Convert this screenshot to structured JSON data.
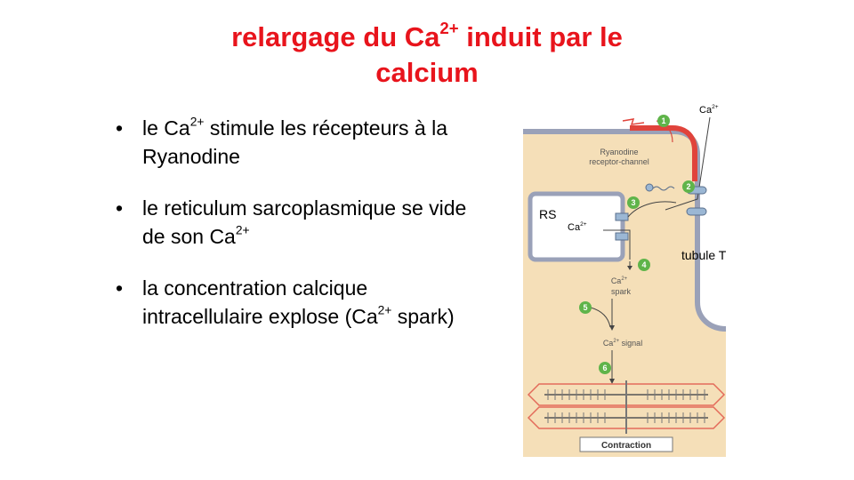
{
  "title": {
    "line1_a": "relargage du Ca",
    "line1_sup": "2+",
    "line1_b": " induit par le",
    "line2": "calcium"
  },
  "bullets": [
    {
      "a": "le Ca",
      "sup": "2+",
      "b": " stimule les récepteurs à la Ryanodine"
    },
    {
      "a": "le reticulum sarcoplasmique se vide de son Ca",
      "sup": "2+",
      "b": ""
    },
    {
      "a": "la concentration calcique intracellulaire explose (Ca",
      "sup": "2+",
      "b": " spark)"
    }
  ],
  "diagram": {
    "ca_top": "Ca",
    "ca_top_sup": "2+",
    "rs_label": "RS",
    "ca_rs": "Ca",
    "ca_rs_sup": "2+",
    "tubule_label": "tubule T",
    "ryanodine_line1": "Ryanodine",
    "ryanodine_line2": "receptor-channel",
    "spark_ca": "Ca",
    "spark_sup": "2+",
    "spark_word": "spark",
    "signal_ca": "Ca",
    "signal_sup": "2+",
    "signal_word": " signal",
    "contraction": "Contraction",
    "steps": [
      "1",
      "2",
      "3",
      "4",
      "5",
      "6"
    ],
    "colors": {
      "cytoplasm": "#f5dfb8",
      "membrane": "#9aa1b8",
      "step_circle": "#5fb44a",
      "red_band": "#e0433b",
      "sarcomere": "#e36b5a"
    }
  }
}
